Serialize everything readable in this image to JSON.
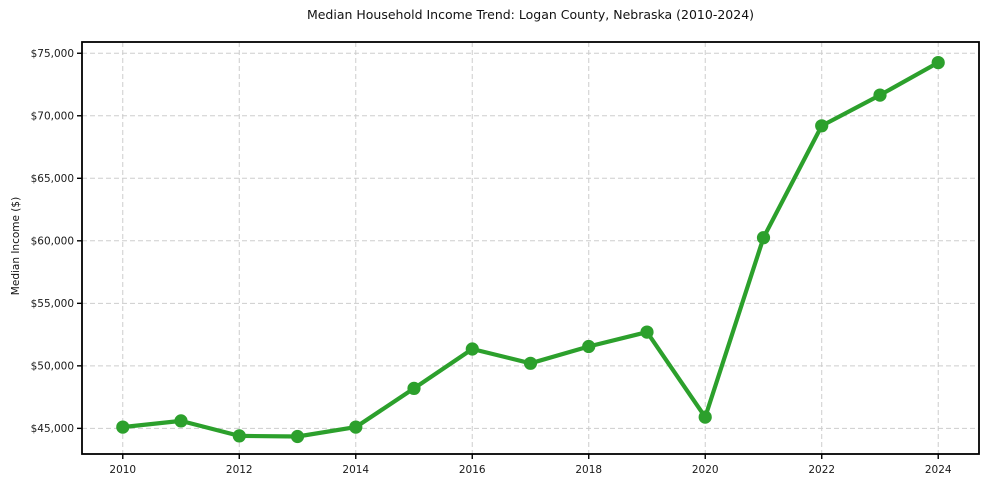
{
  "chart_data": {
    "type": "line",
    "title": "Median Household Income Trend: Logan County, Nebraska (2010-2024)",
    "ylabel": "Median Income ($)",
    "xlabel": "",
    "x": [
      2010,
      2011,
      2012,
      2013,
      2014,
      2015,
      2016,
      2017,
      2018,
      2019,
      2020,
      2021,
      2022,
      2023,
      2024
    ],
    "series": [
      {
        "name": "Median Household Income",
        "color": "#2ca02c",
        "values": [
          45100,
          45600,
          44400,
          44350,
          45100,
          48200,
          51350,
          50200,
          51550,
          52700,
          45900,
          60250,
          69200,
          71650,
          74250
        ]
      }
    ],
    "x_ticks": [
      2010,
      2012,
      2014,
      2016,
      2018,
      2020,
      2022,
      2024
    ],
    "x_tick_labels": [
      "2010",
      "2012",
      "2014",
      "2016",
      "2018",
      "2020",
      "2022",
      "2024"
    ],
    "y_ticks": [
      45000,
      50000,
      55000,
      60000,
      65000,
      70000,
      75000
    ],
    "y_tick_labels": [
      "$45,000",
      "$50,000",
      "$55,000",
      "$60,000",
      "$65,000",
      "$70,000",
      "$75,000"
    ],
    "xlim": [
      2009.3,
      2024.7
    ],
    "ylim": [
      42950,
      75900
    ],
    "grid": true,
    "grid_style": "dashed",
    "legend_position": "none",
    "colors": {
      "line": "#2ca02c",
      "marker": "#2ca02c",
      "grid": "#cdcdcd",
      "axis": "#000000",
      "tick_label": "#1a1a1a",
      "background": "#ffffff"
    }
  }
}
